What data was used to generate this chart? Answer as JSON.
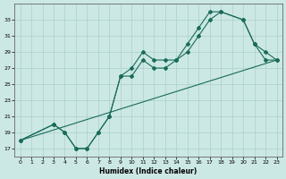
{
  "xlabel": "Humidex (Indice chaleur)",
  "bg_color": "#cce8e4",
  "grid_color": "#aacfcb",
  "line_color": "#1a6b5a",
  "xlim": [
    -0.5,
    23.5
  ],
  "ylim": [
    16.0,
    35.0
  ],
  "xticks": [
    0,
    1,
    2,
    3,
    4,
    5,
    6,
    7,
    8,
    9,
    10,
    11,
    12,
    13,
    14,
    15,
    16,
    17,
    18,
    19,
    20,
    21,
    22,
    23
  ],
  "yticks": [
    17,
    19,
    21,
    23,
    25,
    27,
    29,
    31,
    33
  ],
  "series1_x": [
    0,
    3,
    4,
    5,
    6,
    7,
    8,
    9,
    10,
    11,
    12,
    13,
    14,
    15,
    16,
    17,
    18,
    20,
    21,
    22,
    23
  ],
  "series1_y": [
    18,
    20,
    19,
    17,
    17,
    19,
    21,
    26,
    27,
    29,
    28,
    28,
    28,
    30,
    32,
    34,
    34,
    33,
    30,
    28,
    28
  ],
  "series2_x": [
    0,
    3,
    4,
    5,
    6,
    7,
    8,
    9,
    10,
    11,
    12,
    13,
    14,
    15,
    16,
    17,
    18,
    20,
    21,
    22,
    23
  ],
  "series2_y": [
    18,
    20,
    19,
    17,
    17,
    19,
    21,
    26,
    26,
    28,
    27,
    27,
    28,
    29,
    31,
    33,
    34,
    33,
    30,
    29,
    28
  ],
  "series3_x": [
    0,
    23
  ],
  "series3_y": [
    18,
    28
  ]
}
